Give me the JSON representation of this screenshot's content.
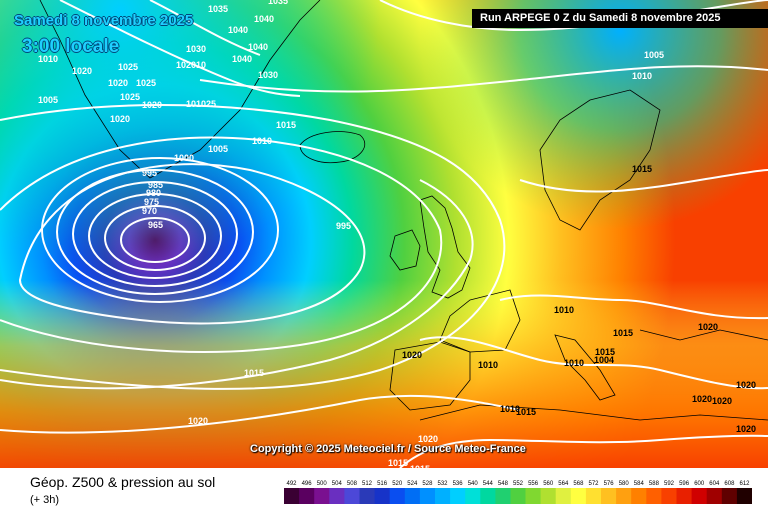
{
  "run_title": "Run ARPEGE 0 Z du Samedi 8 novembre 2025",
  "valid_date": "Samedi 8 novembre 2025",
  "valid_time": "3:00 locale",
  "copyright": "Copyright © 2025 Meteociel.fr / Source Meteo-France",
  "legend": {
    "title": "Géop. Z500 & pression au sol",
    "lead": "(+ 3h)",
    "scale_values": [
      "492",
      "496",
      "500",
      "504",
      "508",
      "512",
      "516",
      "520",
      "524",
      "528",
      "532",
      "536",
      "540",
      "544",
      "548",
      "552",
      "556",
      "560",
      "564",
      "568",
      "572",
      "576",
      "580",
      "584",
      "588",
      "592",
      "596",
      "600",
      "604",
      "608",
      "612"
    ],
    "scale_colors": [
      "#3a0033",
      "#5a0060",
      "#7a1090",
      "#6a2fc0",
      "#4c48d8",
      "#2a3ab8",
      "#1733c8",
      "#0a4ef0",
      "#006ef5",
      "#0090ff",
      "#00b0ff",
      "#00cfff",
      "#00e0d8",
      "#00d8a0",
      "#20d070",
      "#50d040",
      "#80d830",
      "#b0e030",
      "#e0f040",
      "#ffff40",
      "#ffe030",
      "#ffc020",
      "#ffa010",
      "#ff8000",
      "#ff6000",
      "#f84000",
      "#e82000",
      "#d00000",
      "#a00000",
      "#600000",
      "#200000"
    ]
  },
  "pressure_labels": [
    {
      "text": "1035"
    },
    {
      "text": "1040"
    },
    {
      "text": "1035"
    },
    {
      "text": "1030"
    },
    {
      "text": "1040"
    },
    {
      "text": "1040"
    },
    {
      "text": "1020"
    },
    {
      "text": "1010"
    },
    {
      "text": "1020"
    },
    {
      "text": "1025"
    },
    {
      "text": "1020"
    },
    {
      "text": "1025"
    },
    {
      "text": "1005"
    },
    {
      "text": "1020"
    },
    {
      "text": "101025"
    },
    {
      "text": "1030"
    },
    {
      "text": "1040"
    },
    {
      "text": "102010"
    },
    {
      "text": "1025"
    },
    {
      "text": "1015"
    },
    {
      "text": "1010"
    },
    {
      "text": "1005"
    },
    {
      "text": "1000"
    },
    {
      "text": "995"
    },
    {
      "text": "985"
    },
    {
      "text": "980"
    },
    {
      "text": "975"
    },
    {
      "text": "970"
    },
    {
      "text": "965"
    },
    {
      "text": "995"
    },
    {
      "text": "1005"
    },
    {
      "text": "1010"
    },
    {
      "text": "1015"
    },
    {
      "text": "1010"
    },
    {
      "text": "1015"
    },
    {
      "text": "1020"
    },
    {
      "text": "1010"
    },
    {
      "text": "1010"
    },
    {
      "text": "1015"
    },
    {
      "text": "1004"
    },
    {
      "text": "1020"
    },
    {
      "text": "1010"
    },
    {
      "text": "1020"
    },
    {
      "text": "1015"
    },
    {
      "text": "1020"
    },
    {
      "text": "1015"
    },
    {
      "text": "1020"
    },
    {
      "text": "1020"
    },
    {
      "text": "1020"
    },
    {
      "text": "1020"
    },
    {
      "text": "1015"
    },
    {
      "text": "1015"
    }
  ]
}
